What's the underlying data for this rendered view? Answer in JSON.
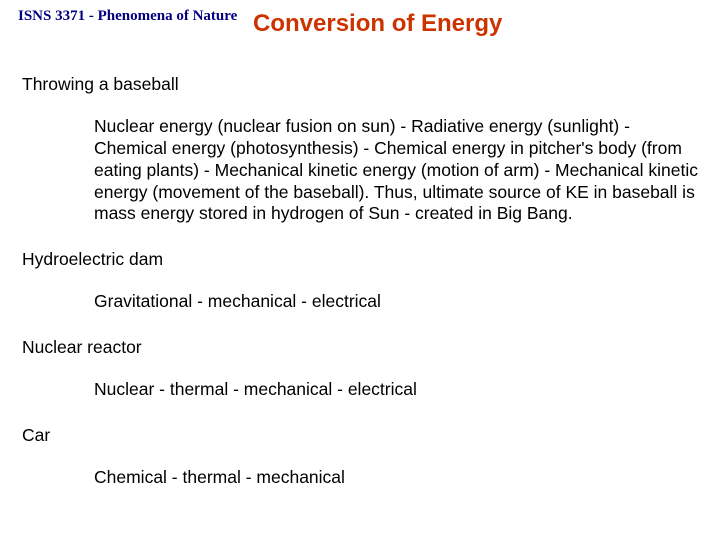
{
  "course_label": "ISNS 3371 - Phenomena of Nature",
  "slide_title": "Conversion of Energy",
  "sections": [
    {
      "heading": "Throwing a baseball",
      "text": "Nuclear energy (nuclear fusion on sun)  - Radiative energy (sunlight)  - Chemical energy (photosynthesis) - Chemical energy in pitcher's body (from eating plants) - Mechanical kinetic energy (motion of arm) - Mechanical kinetic energy (movement of the baseball). Thus, ultimate source of KE in baseball is mass energy stored in hydrogen of Sun - created in Big Bang."
    },
    {
      "heading": "Hydroelectric dam",
      "text": "Gravitational - mechanical - electrical"
    },
    {
      "heading": "Nuclear reactor",
      "text": "Nuclear - thermal - mechanical - electrical"
    },
    {
      "heading": "Car",
      "text": "Chemical - thermal - mechanical"
    }
  ],
  "colors": {
    "course_label": "#000080",
    "title": "#cc3300",
    "body": "#000000",
    "background": "#ffffff"
  },
  "fonts": {
    "course_label_family": "Times New Roman",
    "title_family": "Arial",
    "body_family": "Arial",
    "course_label_size_pt": 11,
    "title_size_pt": 18,
    "body_size_pt": 13
  }
}
